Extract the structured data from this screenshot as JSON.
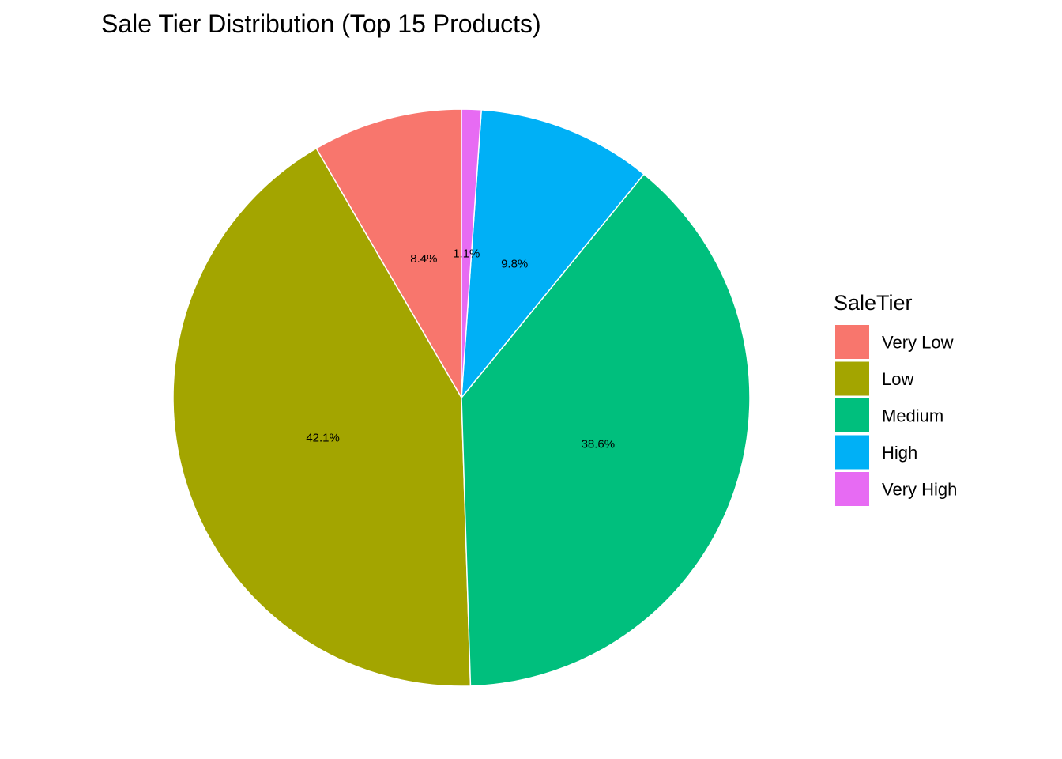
{
  "chart_data": {
    "type": "pie",
    "title": "Sale Tier Distribution (Top 15 Products)",
    "legend": {
      "title": "SaleTier",
      "position": "right"
    },
    "categories": [
      "Very Low",
      "Low",
      "Medium",
      "High",
      "Very High"
    ],
    "values": [
      8.4,
      42.1,
      38.6,
      9.8,
      1.1
    ],
    "labels": [
      "8.4%",
      "42.1%",
      "38.6%",
      "9.8%",
      "1.1%"
    ],
    "colors": [
      "#F8766D",
      "#A3A500",
      "#00BF7D",
      "#00B0F6",
      "#E76BF3"
    ],
    "direction": "counter-clockwise from top"
  }
}
